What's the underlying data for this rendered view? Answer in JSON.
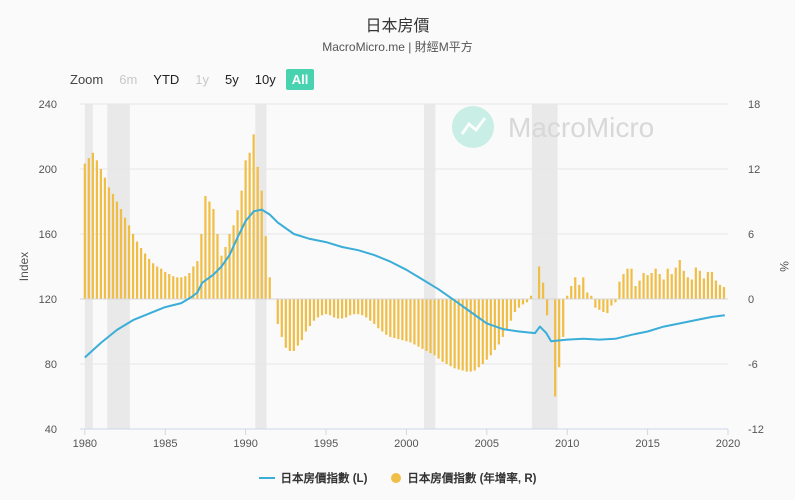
{
  "header": {
    "title": "日本房價",
    "subtitle": "MacroMicro.me | 財經M平方"
  },
  "zoom": {
    "label": "Zoom",
    "buttons": [
      {
        "label": "6m",
        "state": "disabled"
      },
      {
        "label": "YTD",
        "state": "normal"
      },
      {
        "label": "1y",
        "state": "disabled"
      },
      {
        "label": "5y",
        "state": "normal"
      },
      {
        "label": "10y",
        "state": "normal"
      },
      {
        "label": "All",
        "state": "active"
      }
    ]
  },
  "watermark": {
    "text": "MacroMicro"
  },
  "legend": {
    "line_label": "日本房價指數 (L)",
    "bar_label": "日本房價指數 (年增率, R)"
  },
  "colors": {
    "line": "#3aaed8",
    "bar": "#f0bd45",
    "recession": "#e9e9e9",
    "active_zoom": "#49d2b0",
    "watermark": "#49d2b0"
  },
  "chart_data": {
    "type": "line+bar",
    "title": "日本房價",
    "xlabel": "",
    "ylabel_left": "Index",
    "ylabel_right": "%",
    "xlim": [
      1979.7,
      2020.0
    ],
    "ylim_left": [
      40,
      240
    ],
    "ylim_right": [
      -12,
      18
    ],
    "xticks": [
      1980,
      1985,
      1990,
      1995,
      2000,
      2005,
      2010,
      2015,
      2020
    ],
    "yticks_left": [
      40,
      80,
      120,
      160,
      200,
      240
    ],
    "yticks_right": [
      -12,
      -6,
      0,
      6,
      12,
      18
    ],
    "recession_bands": [
      [
        1980.0,
        1980.5
      ],
      [
        1981.4,
        1982.8
      ],
      [
        1990.6,
        1991.3
      ],
      [
        2001.1,
        2001.8
      ],
      [
        2007.8,
        2009.4
      ]
    ],
    "line_series": {
      "name": "日本房價指數 (L)",
      "points": [
        [
          1980.0,
          84
        ],
        [
          1981.0,
          93
        ],
        [
          1982.0,
          101
        ],
        [
          1983.0,
          107
        ],
        [
          1984.0,
          111
        ],
        [
          1985.0,
          115
        ],
        [
          1986.0,
          117.5
        ],
        [
          1986.6,
          121
        ],
        [
          1987.0,
          124
        ],
        [
          1987.3,
          130
        ],
        [
          1988.0,
          135
        ],
        [
          1988.5,
          140
        ],
        [
          1989.0,
          147
        ],
        [
          1989.5,
          158
        ],
        [
          1990.0,
          168
        ],
        [
          1990.5,
          174
        ],
        [
          1991.0,
          175
        ],
        [
          1991.5,
          172
        ],
        [
          1992.0,
          167
        ],
        [
          1993.0,
          160
        ],
        [
          1994.0,
          157
        ],
        [
          1995.0,
          155
        ],
        [
          1996.0,
          152
        ],
        [
          1997.0,
          150
        ],
        [
          1998.0,
          147
        ],
        [
          1999.0,
          143
        ],
        [
          2000.0,
          138
        ],
        [
          2001.0,
          132
        ],
        [
          2002.0,
          126
        ],
        [
          2003.0,
          119
        ],
        [
          2004.0,
          112
        ],
        [
          2005.0,
          105
        ],
        [
          2006.0,
          101.5
        ],
        [
          2007.0,
          100
        ],
        [
          2008.0,
          99
        ],
        [
          2008.3,
          103
        ],
        [
          2008.7,
          99
        ],
        [
          2009.0,
          94
        ],
        [
          2010.0,
          95
        ],
        [
          2011.0,
          95.5
        ],
        [
          2012.0,
          95
        ],
        [
          2013.0,
          95.5
        ],
        [
          2014.0,
          98
        ],
        [
          2015.0,
          100
        ],
        [
          2016.0,
          103
        ],
        [
          2017.0,
          105
        ],
        [
          2018.0,
          107
        ],
        [
          2019.0,
          109
        ],
        [
          2019.8,
          110
        ]
      ]
    },
    "bar_series": {
      "name": "日本房價指數 (年增率, R)",
      "points": [
        [
          1980.0,
          12.5
        ],
        [
          1980.25,
          13.0
        ],
        [
          1980.5,
          13.5
        ],
        [
          1980.75,
          12.8
        ],
        [
          1981.0,
          12.0
        ],
        [
          1981.25,
          11.2
        ],
        [
          1981.5,
          10.3
        ],
        [
          1981.75,
          9.7
        ],
        [
          1982.0,
          9.0
        ],
        [
          1982.25,
          8.3
        ],
        [
          1982.5,
          7.5
        ],
        [
          1982.75,
          6.8
        ],
        [
          1983.0,
          6.0
        ],
        [
          1983.25,
          5.3
        ],
        [
          1983.5,
          4.7
        ],
        [
          1983.75,
          4.2
        ],
        [
          1984.0,
          3.7
        ],
        [
          1984.25,
          3.3
        ],
        [
          1984.5,
          3.0
        ],
        [
          1984.75,
          2.8
        ],
        [
          1985.0,
          2.5
        ],
        [
          1985.25,
          2.3
        ],
        [
          1985.5,
          2.1
        ],
        [
          1985.75,
          2.0
        ],
        [
          1986.0,
          2.0
        ],
        [
          1986.25,
          2.1
        ],
        [
          1986.5,
          2.4
        ],
        [
          1986.75,
          3.0
        ],
        [
          1987.0,
          3.5
        ],
        [
          1987.25,
          6.0
        ],
        [
          1987.5,
          9.5
        ],
        [
          1987.75,
          9.0
        ],
        [
          1988.0,
          8.3
        ],
        [
          1988.25,
          6.0
        ],
        [
          1988.5,
          4.0
        ],
        [
          1988.75,
          4.8
        ],
        [
          1989.0,
          6.0
        ],
        [
          1989.25,
          6.8
        ],
        [
          1989.5,
          8.2
        ],
        [
          1989.75,
          10.0
        ],
        [
          1990.0,
          12.8
        ],
        [
          1990.25,
          13.5
        ],
        [
          1990.5,
          15.2
        ],
        [
          1990.75,
          12.2
        ],
        [
          1991.0,
          10.0
        ],
        [
          1991.25,
          5.8
        ],
        [
          1991.5,
          2.0
        ],
        [
          1992.0,
          -2.3
        ],
        [
          1992.25,
          -3.5
        ],
        [
          1992.5,
          -4.5
        ],
        [
          1992.75,
          -4.8
        ],
        [
          1993.0,
          -4.8
        ],
        [
          1993.25,
          -4.3
        ],
        [
          1993.5,
          -3.8
        ],
        [
          1993.75,
          -3.0
        ],
        [
          1994.0,
          -2.5
        ],
        [
          1994.25,
          -2.0
        ],
        [
          1994.5,
          -1.7
        ],
        [
          1994.75,
          -1.5
        ],
        [
          1995.0,
          -1.4
        ],
        [
          1995.25,
          -1.5
        ],
        [
          1995.5,
          -1.7
        ],
        [
          1995.75,
          -1.8
        ],
        [
          1996.0,
          -1.8
        ],
        [
          1996.25,
          -1.7
        ],
        [
          1996.5,
          -1.5
        ],
        [
          1996.75,
          -1.4
        ],
        [
          1997.0,
          -1.4
        ],
        [
          1997.25,
          -1.5
        ],
        [
          1997.5,
          -1.7
        ],
        [
          1997.75,
          -2.0
        ],
        [
          1998.0,
          -2.3
        ],
        [
          1998.25,
          -2.7
        ],
        [
          1998.5,
          -3.0
        ],
        [
          1998.75,
          -3.3
        ],
        [
          1999.0,
          -3.5
        ],
        [
          1999.25,
          -3.6
        ],
        [
          1999.5,
          -3.7
        ],
        [
          1999.75,
          -3.8
        ],
        [
          2000.0,
          -3.9
        ],
        [
          2000.25,
          -4.0
        ],
        [
          2000.5,
          -4.2
        ],
        [
          2000.75,
          -4.4
        ],
        [
          2001.0,
          -4.6
        ],
        [
          2001.25,
          -4.8
        ],
        [
          2001.5,
          -5.0
        ],
        [
          2001.75,
          -5.2
        ],
        [
          2002.0,
          -5.5
        ],
        [
          2002.25,
          -5.8
        ],
        [
          2002.5,
          -6.0
        ],
        [
          2002.75,
          -6.2
        ],
        [
          2003.0,
          -6.4
        ],
        [
          2003.25,
          -6.5
        ],
        [
          2003.5,
          -6.6
        ],
        [
          2003.75,
          -6.7
        ],
        [
          2004.0,
          -6.7
        ],
        [
          2004.25,
          -6.6
        ],
        [
          2004.5,
          -6.3
        ],
        [
          2004.75,
          -6.0
        ],
        [
          2005.0,
          -5.6
        ],
        [
          2005.25,
          -5.2
        ],
        [
          2005.5,
          -4.7
        ],
        [
          2005.75,
          -4.2
        ],
        [
          2006.0,
          -3.5
        ],
        [
          2006.25,
          -2.8
        ],
        [
          2006.5,
          -2.0
        ],
        [
          2006.75,
          -1.2
        ],
        [
          2007.0,
          -0.8
        ],
        [
          2007.25,
          -0.5
        ],
        [
          2007.5,
          -0.3
        ],
        [
          2007.75,
          0.3
        ],
        [
          2008.25,
          3.0
        ],
        [
          2008.5,
          1.5
        ],
        [
          2008.75,
          -1.5
        ],
        [
          2009.25,
          -9.0
        ],
        [
          2009.5,
          -6.3
        ],
        [
          2009.75,
          -3.5
        ],
        [
          2010.0,
          0.3
        ],
        [
          2010.25,
          1.2
        ],
        [
          2010.5,
          2.0
        ],
        [
          2010.75,
          1.3
        ],
        [
          2011.0,
          2.0
        ],
        [
          2011.25,
          0.6
        ],
        [
          2011.5,
          0.3
        ],
        [
          2011.75,
          -0.8
        ],
        [
          2012.0,
          -1.0
        ],
        [
          2012.25,
          -1.2
        ],
        [
          2012.5,
          -1.3
        ],
        [
          2012.75,
          -0.6
        ],
        [
          2013.0,
          -0.3
        ],
        [
          2013.25,
          1.6
        ],
        [
          2013.5,
          2.3
        ],
        [
          2013.75,
          2.8
        ],
        [
          2014.0,
          2.8
        ],
        [
          2014.25,
          1.2
        ],
        [
          2014.5,
          1.7
        ],
        [
          2014.75,
          2.4
        ],
        [
          2015.0,
          2.2
        ],
        [
          2015.25,
          2.4
        ],
        [
          2015.5,
          2.8
        ],
        [
          2015.75,
          2.3
        ],
        [
          2016.0,
          1.8
        ],
        [
          2016.25,
          2.8
        ],
        [
          2016.5,
          2.3
        ],
        [
          2016.75,
          2.9
        ],
        [
          2017.0,
          3.6
        ],
        [
          2017.25,
          2.6
        ],
        [
          2017.5,
          2.0
        ],
        [
          2017.75,
          1.8
        ],
        [
          2018.0,
          2.9
        ],
        [
          2018.25,
          2.6
        ],
        [
          2018.5,
          1.9
        ],
        [
          2018.75,
          2.5
        ],
        [
          2019.0,
          2.5
        ],
        [
          2019.25,
          1.7
        ],
        [
          2019.5,
          1.3
        ],
        [
          2019.75,
          1.1
        ]
      ]
    }
  }
}
